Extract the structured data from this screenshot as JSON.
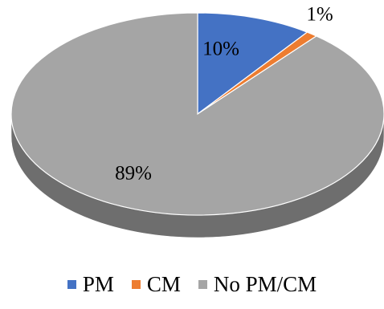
{
  "chart_data": {
    "type": "pie",
    "style": "3d",
    "title": "",
    "categories": [
      "PM",
      "CM",
      "No PM/CM"
    ],
    "values": [
      10,
      1,
      89
    ],
    "data_labels": [
      "10%",
      "1%",
      "89%"
    ],
    "colors": [
      "#4472C4",
      "#ED7D31",
      "#A5A5A5"
    ],
    "side_colors": [
      "#2F5597",
      "#C55A11",
      "#6E6E6E"
    ],
    "legend": "bottom"
  }
}
